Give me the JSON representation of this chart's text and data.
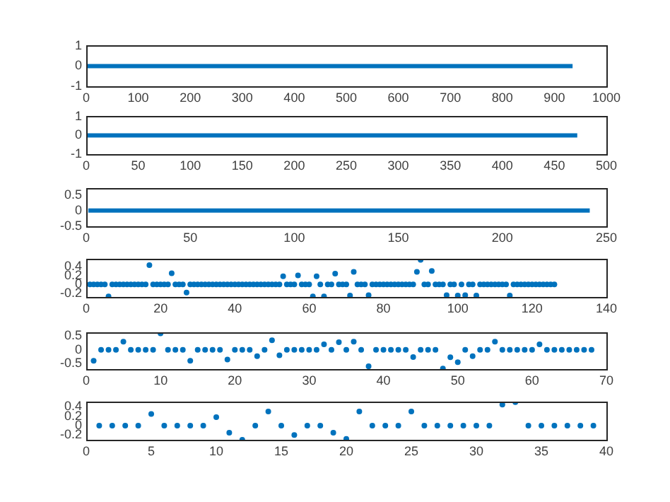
{
  "chart_data": [
    {
      "type": "line",
      "marker": "none",
      "xlim": [
        0,
        1000
      ],
      "xticks": [
        0,
        100,
        200,
        300,
        400,
        500,
        600,
        700,
        800,
        900,
        1000
      ],
      "ylim": [
        -1,
        1
      ],
      "yticks": [
        -1,
        0,
        1
      ],
      "series": [
        {
          "color": "#0072bd",
          "x": [
            1,
            935
          ],
          "values": [
            0,
            0
          ]
        }
      ]
    },
    {
      "type": "line",
      "marker": "none",
      "xlim": [
        0,
        500
      ],
      "xticks": [
        0,
        50,
        100,
        150,
        200,
        250,
        300,
        350,
        400,
        450,
        500
      ],
      "ylim": [
        -1,
        1
      ],
      "yticks": [
        -1,
        0,
        1
      ],
      "series": [
        {
          "color": "#0072bd",
          "x": [
            1,
            472
          ],
          "values": [
            0,
            0
          ]
        }
      ]
    },
    {
      "type": "line",
      "marker": "none",
      "xlim": [
        0,
        250
      ],
      "xticks": [
        0,
        50,
        100,
        150,
        200,
        250
      ],
      "ylim": [
        -0.5,
        0.7
      ],
      "yticks": [
        -0.5,
        0,
        0.5
      ],
      "series": [
        {
          "color": "#0072bd",
          "x": [
            1,
            242
          ],
          "values": [
            0,
            0
          ]
        }
      ]
    },
    {
      "type": "scatter",
      "marker": "circle",
      "xlim": [
        0,
        140
      ],
      "xticks": [
        0,
        20,
        40,
        60,
        80,
        100,
        120,
        140
      ],
      "ylim": [
        -0.28,
        0.56
      ],
      "yticks": [
        -0.2,
        0,
        0.2,
        0.4
      ],
      "series": [
        {
          "color": "#0072bd",
          "x": [
            1,
            2,
            3,
            4,
            5,
            6,
            7,
            8,
            9,
            10,
            11,
            12,
            13,
            14,
            15,
            16,
            17,
            18,
            19,
            20,
            21,
            22,
            23,
            24,
            25,
            26,
            27,
            28,
            29,
            30,
            31,
            32,
            33,
            34,
            35,
            36,
            37,
            38,
            39,
            40,
            41,
            42,
            43,
            44,
            45,
            46,
            47,
            48,
            49,
            50,
            51,
            52,
            53,
            54,
            55,
            56,
            57,
            58,
            59,
            60,
            61,
            62,
            63,
            64,
            65,
            66,
            67,
            68,
            69,
            70,
            71,
            72,
            73,
            74,
            75,
            76,
            77,
            78,
            79,
            80,
            81,
            82,
            83,
            84,
            85,
            86,
            87,
            88,
            89,
            90,
            91,
            92,
            93,
            94,
            95,
            96,
            97,
            98,
            99,
            100,
            101,
            102,
            103,
            104,
            105,
            106,
            107,
            108,
            109,
            110,
            111,
            112,
            113,
            114,
            115,
            116,
            117,
            118,
            119,
            120,
            121,
            122,
            123,
            124,
            125,
            126
          ],
          "values": [
            0,
            0,
            0,
            0,
            0,
            -0.27,
            0,
            0,
            0,
            0,
            0,
            0,
            0,
            0,
            0,
            0,
            0.43,
            0,
            0,
            0,
            0,
            0,
            0.25,
            0,
            0,
            0,
            -0.18,
            0,
            0,
            0,
            0,
            0,
            0,
            0,
            0,
            0,
            0,
            0,
            0,
            0,
            0,
            0,
            0,
            0,
            0,
            0,
            0,
            0,
            0,
            0,
            0,
            0,
            0.18,
            0,
            0,
            0,
            0.2,
            0,
            0,
            0,
            -0.27,
            0.18,
            0,
            -0.27,
            0,
            0,
            0.24,
            0,
            0,
            0,
            -0.25,
            0.28,
            0,
            0,
            0,
            -0.24,
            0,
            0,
            0,
            0,
            0,
            0,
            0,
            0,
            0,
            0,
            0,
            0,
            0.28,
            0.55,
            0,
            0,
            0.3,
            0,
            0,
            0,
            -0.24,
            0,
            0,
            -0.25,
            0,
            -0.24,
            0,
            0,
            -0.25,
            0,
            0,
            0,
            0,
            0,
            0,
            0,
            0,
            -0.25,
            0,
            0,
            0,
            0,
            0,
            0,
            0,
            0,
            0,
            0,
            0,
            0
          ]
        }
      ]
    },
    {
      "type": "scatter",
      "marker": "circle",
      "xlim": [
        0,
        70
      ],
      "xticks": [
        0,
        10,
        20,
        30,
        40,
        50,
        60,
        70
      ],
      "ylim": [
        -0.7,
        0.62
      ],
      "yticks": [
        -0.5,
        0,
        0.5
      ],
      "series": [
        {
          "color": "#0072bd",
          "x": [
            1,
            2,
            3,
            4,
            5,
            6,
            7,
            8,
            9,
            10,
            11,
            12,
            13,
            14,
            15,
            16,
            17,
            18,
            19,
            20,
            21,
            22,
            23,
            24,
            25,
            26,
            27,
            28,
            29,
            30,
            31,
            32,
            33,
            34,
            35,
            36,
            37,
            38,
            39,
            40,
            41,
            42,
            43,
            44,
            45,
            46,
            47,
            48,
            49,
            50,
            51,
            52,
            53,
            54,
            55,
            56,
            57,
            58,
            59,
            60,
            61,
            62,
            63,
            64,
            65,
            66,
            67,
            68
          ],
          "values": [
            -0.4,
            0,
            0,
            0,
            0.3,
            0,
            0,
            0,
            0,
            0.6,
            0,
            0,
            0,
            -0.4,
            0,
            0,
            0,
            0,
            -0.35,
            0,
            0,
            0,
            -0.23,
            0,
            0.35,
            -0.2,
            0,
            0,
            0,
            0,
            0,
            0.2,
            0,
            0.28,
            0,
            0.3,
            0,
            -0.6,
            0,
            0,
            0,
            0,
            0,
            -0.26,
            0,
            0,
            0,
            -0.68,
            -0.27,
            -0.45,
            0,
            -0.23,
            0,
            0,
            0.3,
            0,
            0,
            0,
            0,
            0,
            0.2,
            0,
            0,
            0,
            0,
            0,
            0,
            0
          ]
        }
      ]
    },
    {
      "type": "scatter",
      "marker": "circle",
      "xlim": [
        0,
        40
      ],
      "xticks": [
        0,
        5,
        10,
        15,
        20,
        25,
        30,
        35,
        40
      ],
      "ylim": [
        -0.3,
        0.5
      ],
      "yticks": [
        -0.2,
        0,
        0.2,
        0.4
      ],
      "series": [
        {
          "color": "#0072bd",
          "x": [
            1,
            2,
            3,
            4,
            5,
            6,
            7,
            8,
            9,
            10,
            11,
            12,
            13,
            14,
            15,
            16,
            17,
            18,
            19,
            20,
            21,
            22,
            23,
            24,
            25,
            26,
            27,
            28,
            29,
            30,
            31,
            32,
            33,
            34,
            35,
            36,
            37,
            38,
            39
          ],
          "values": [
            0,
            0,
            0,
            0,
            0.25,
            0,
            0,
            0,
            0,
            0.18,
            -0.15,
            -0.3,
            0,
            0.3,
            0,
            -0.2,
            0,
            0,
            -0.15,
            -0.28,
            0.3,
            0,
            0,
            0,
            0.3,
            0,
            0,
            0,
            0,
            0,
            0,
            0.45,
            0.5,
            0,
            0,
            0,
            0,
            0,
            0
          ]
        }
      ]
    }
  ]
}
